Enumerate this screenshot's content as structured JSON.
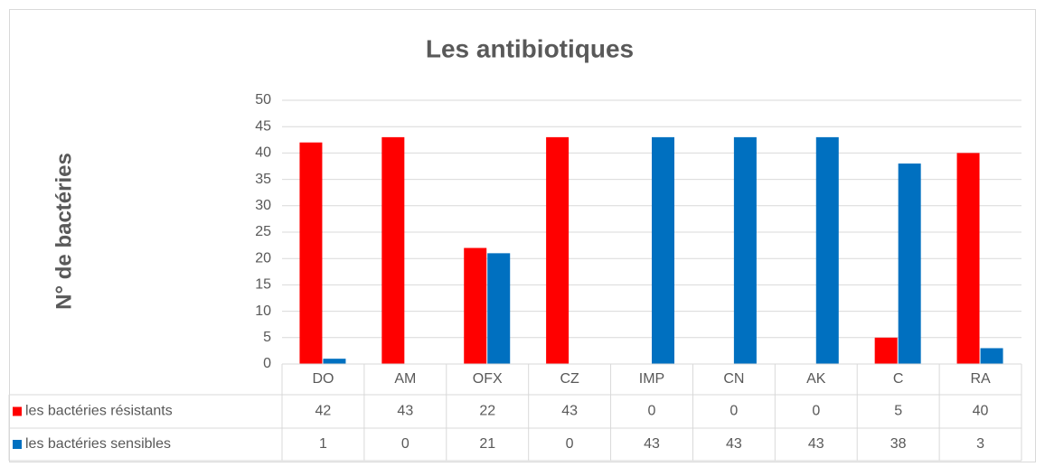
{
  "chart_data": {
    "type": "bar",
    "title": "Les antibiotiques",
    "y_label": "N° de bactéries",
    "categories": [
      "DO",
      "AM",
      "OFX",
      "CZ",
      "IMP",
      "CN",
      "AK",
      "C",
      "RA"
    ],
    "series": [
      {
        "name": "les bactéries résistants",
        "color": "#ff0000",
        "values": [
          42,
          43,
          22,
          43,
          0,
          0,
          0,
          5,
          40
        ]
      },
      {
        "name": "les bactéries sensibles",
        "color": "#0070c0",
        "values": [
          1,
          0,
          21,
          0,
          43,
          43,
          43,
          38,
          3
        ]
      }
    ],
    "ylim": [
      0,
      50
    ],
    "yticks": [
      0,
      5,
      10,
      15,
      20,
      25,
      30,
      35,
      40,
      45,
      50
    ],
    "grid": true,
    "data_table": true
  }
}
